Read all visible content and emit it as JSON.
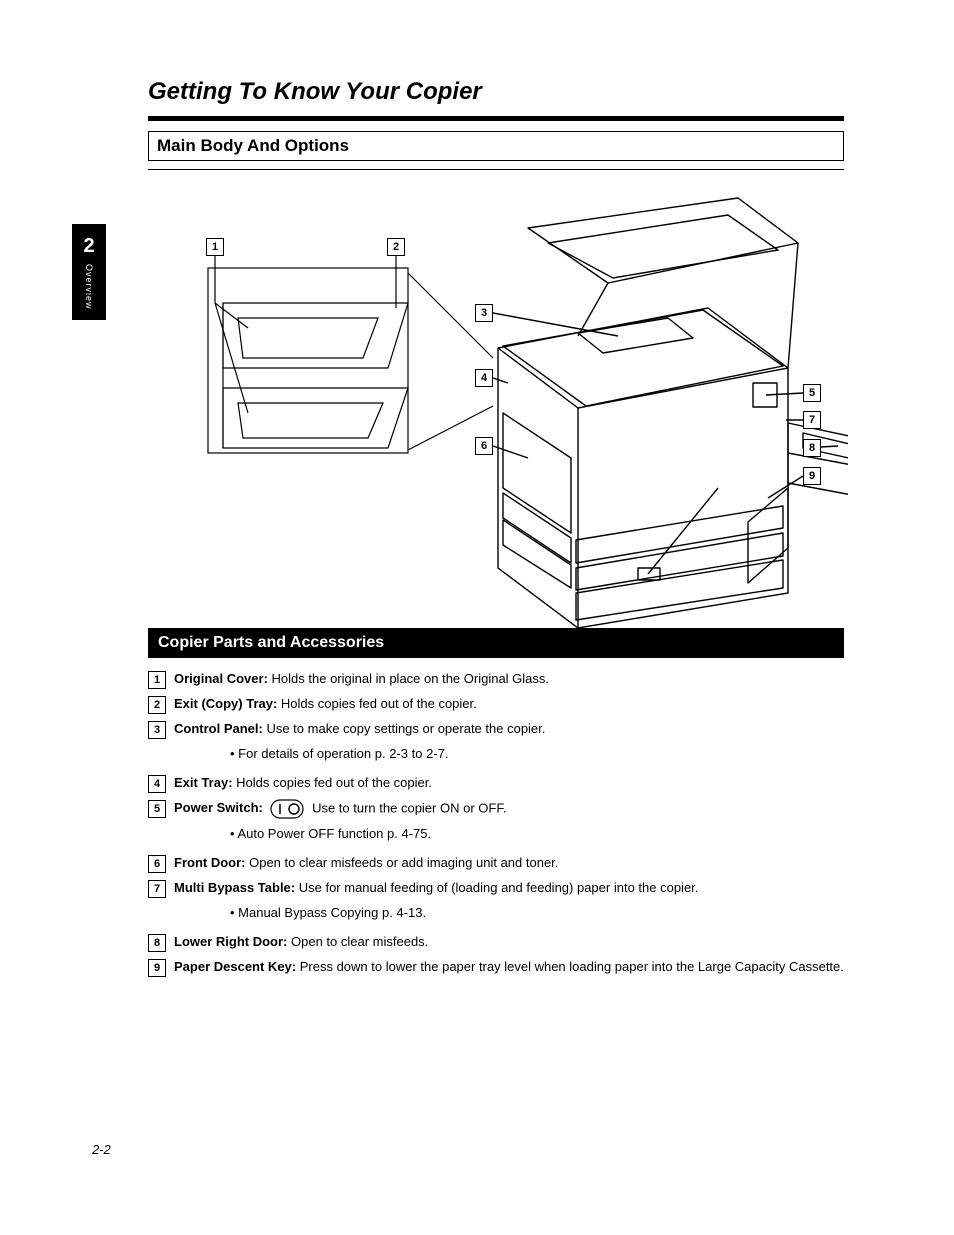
{
  "colors": {
    "black": "#000000",
    "white": "#ffffff"
  },
  "chapter": {
    "title": "Getting To Know Your Copier",
    "section_title": "Main Body And Options",
    "side_tab": {
      "number": "2",
      "label": "Overview"
    }
  },
  "diagram": {
    "callouts": [
      "1",
      "2",
      "3",
      "4",
      "5",
      "6",
      "7",
      "8",
      "9"
    ]
  },
  "desc_header": "Copier Parts and Accessories",
  "items": [
    {
      "n": "1",
      "html": "<b>Original Cover:</b> Holds the original in place on the Original Glass."
    },
    {
      "n": "2",
      "html": "<b>Exit (Copy) Tray:</b> Holds copies fed out of the copier."
    },
    {
      "n": "3",
      "html": "<b>Control Panel:</b> Use to make copy settings or operate the copier."
    },
    {
      "n": "",
      "note": true,
      "html": "• For details of operation <span class=\"xref\">p. 2-3</span> to 2-7."
    },
    {
      "n": "4",
      "html": "<b>Exit Tray:</b> Holds copies fed out of the copier."
    },
    {
      "n": "5",
      "html": "<b>Power Switch: <span class=\"oval-icon\"><svg width=\"34\" height=\"20\"><rect x=\"1\" y=\"1\" rx=\"9\" ry=\"9\" width=\"32\" height=\"18\" fill=\"none\" stroke=\"#000\" stroke-width=\"1.2\"/><line x1=\"10\" y1=\"5\" x2=\"10\" y2=\"15\" stroke=\"#000\" stroke-width=\"1.5\"/><circle cx=\"24\" cy=\"10\" r=\"5\" fill=\"none\" stroke=\"#000\" stroke-width=\"1.5\"/></svg></span></b> Use to turn the copier ON or OFF."
    },
    {
      "n": "",
      "note": true,
      "html": "• Auto Power OFF function <span class=\"xref\">p. 4-75</span>."
    },
    {
      "n": "6",
      "html": "<b>Front Door:</b> Open to clear misfeeds or add imaging unit and toner."
    },
    {
      "n": "7",
      "html": "<b>Multi Bypass Table:</b> Use for manual feeding of (loading and feeding) paper into the copier."
    },
    {
      "n": "",
      "note": true,
      "html": "• Manual Bypass Copying <span class=\"xref\">p. 4-13</span>."
    },
    {
      "n": "8",
      "html": "<b>Lower Right Door:</b> Open to clear misfeeds."
    },
    {
      "n": "9",
      "html": "<b>Paper Descent Key:</b> Press down to lower the paper tray level when loading paper into the Large Capacity Cassette."
    }
  ],
  "page_number": "2-2"
}
